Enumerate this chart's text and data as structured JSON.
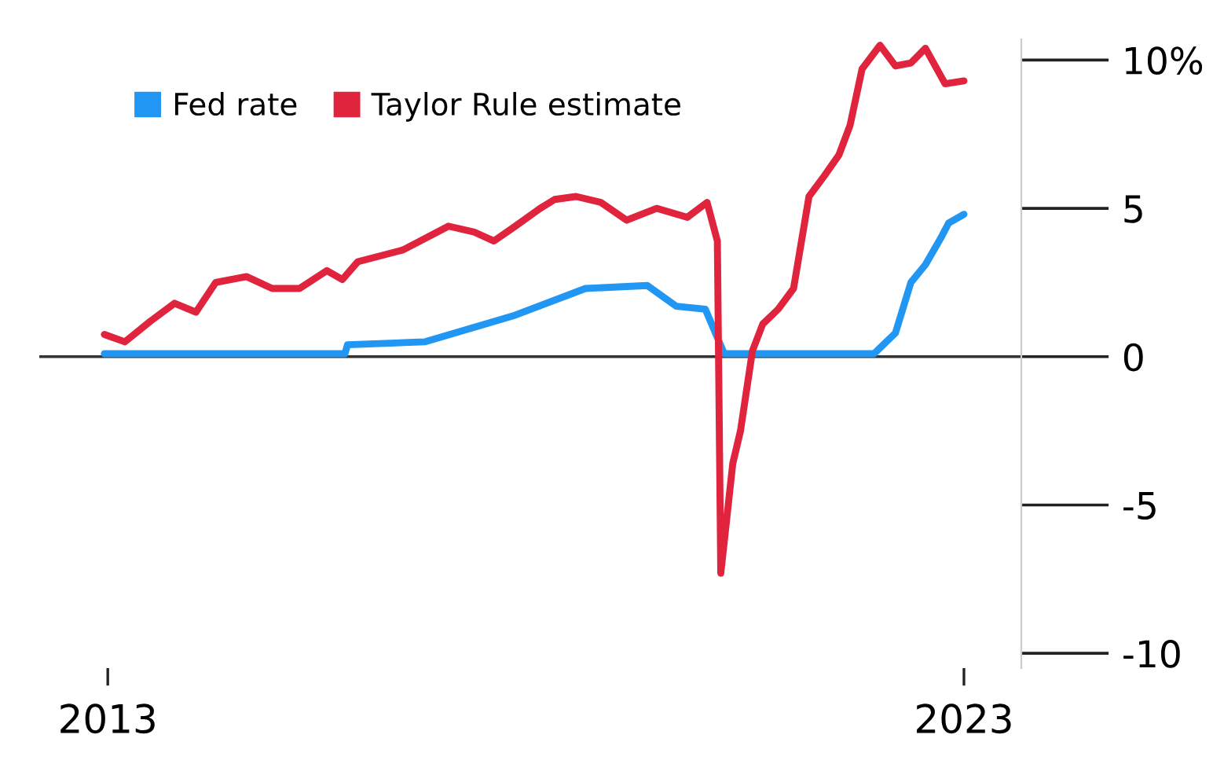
{
  "chart_data": {
    "type": "line",
    "x": [
      2012.96,
      2013.2,
      2013.5,
      2013.78,
      2014.03,
      2014.26,
      2014.62,
      2014.92,
      2015.24,
      2015.56,
      2015.74,
      2015.92,
      2016.45,
      2016.98,
      2017.28,
      2017.51,
      2017.76,
      2018.05,
      2018.22,
      2018.47,
      2018.76,
      2019.06,
      2019.41,
      2019.77,
      2020.0,
      2020.12,
      2020.16,
      2020.3,
      2020.39,
      2020.53,
      2020.65,
      2020.83,
      2021.01,
      2021.19,
      2021.37,
      2021.54,
      2021.67,
      2021.81,
      2022.02,
      2022.2,
      2022.38,
      2022.55,
      2022.78,
      2023.0
    ],
    "series": [
      {
        "name": "Fed rate",
        "color": "#2196f3",
        "x": [
          2012.96,
          2015.77,
          2015.8,
          2016.7,
          2017.76,
          2018.58,
          2019.3,
          2019.64,
          2019.98,
          2020.2,
          2021.95,
          2022.2,
          2022.38,
          2022.55,
          2022.73,
          2022.82,
          2023.0
        ],
        "values": [
          0.1,
          0.1,
          0.4,
          0.5,
          1.4,
          2.3,
          2.4,
          1.7,
          1.6,
          0.1,
          0.1,
          0.8,
          2.5,
          3.1,
          4.0,
          4.5,
          4.8
        ]
      },
      {
        "name": "Taylor Rule estimate",
        "color": "#e0243e",
        "values": [
          0.75,
          0.5,
          1.2,
          1.8,
          1.5,
          2.5,
          2.7,
          2.3,
          2.3,
          2.9,
          2.6,
          3.2,
          3.6,
          4.4,
          4.2,
          3.9,
          4.4,
          5.0,
          5.3,
          5.4,
          5.2,
          4.6,
          5.0,
          4.7,
          5.2,
          3.9,
          -7.3,
          -3.6,
          -2.5,
          0.2,
          1.1,
          1.6,
          2.3,
          5.4,
          6.1,
          6.8,
          7.8,
          9.7,
          10.5,
          9.8,
          9.9,
          10.4,
          9.2,
          9.3
        ]
      }
    ],
    "xlim": [
      2012.2,
      2023.67
    ],
    "xticks": [
      2013,
      2023
    ],
    "ylim": [
      -10.5,
      10.7
    ],
    "yticks": [
      {
        "value": 10,
        "label": "10%"
      },
      5,
      0,
      -5,
      -10
    ],
    "ref_lines": [
      {
        "axis": "y",
        "value": 0,
        "color": "#333333"
      }
    ],
    "legend": "top left",
    "grid": false
  }
}
